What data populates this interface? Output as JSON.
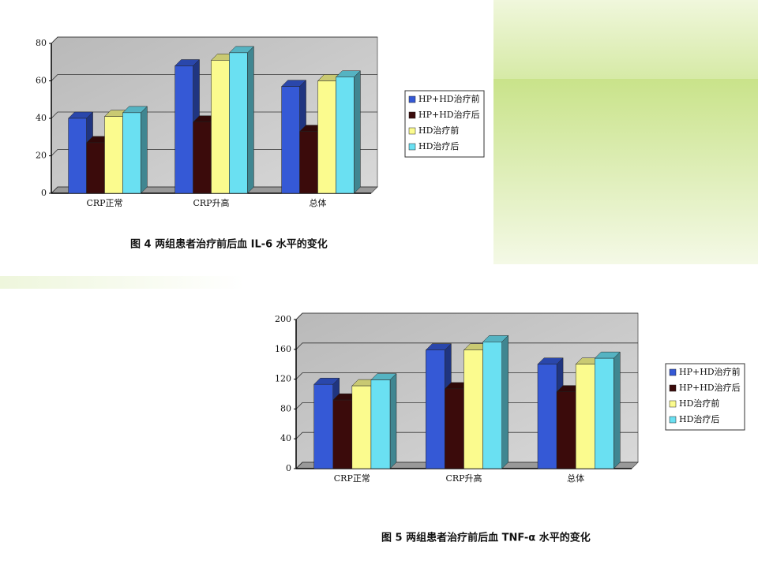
{
  "chart_data": [
    {
      "type": "bar",
      "title": "图 4 两组患者治疗前后血 IL-6 水平的变化",
      "categories": [
        "CRP正常",
        "CRP升高",
        "总体"
      ],
      "series": [
        {
          "name": "HP+HD治疗前",
          "color": "#3559d6",
          "values": [
            40,
            68,
            57
          ]
        },
        {
          "name": "HP+HD治疗后",
          "color": "#3b0b0b",
          "values": [
            27,
            38,
            33
          ]
        },
        {
          "name": "HD治疗前",
          "color": "#fbfb8e",
          "values": [
            41,
            71,
            60
          ]
        },
        {
          "name": "HD治疗后",
          "color": "#6ae0f2",
          "values": [
            43,
            75,
            62
          ]
        }
      ],
      "ylim": [
        0,
        80
      ],
      "yticks": [
        0,
        20,
        40,
        60,
        80
      ],
      "grid": true
    },
    {
      "type": "bar",
      "title": "图 5 两组患者治疗前后血 TNF-α 水平的变化",
      "categories": [
        "CRP正常",
        "CRP升高",
        "总体"
      ],
      "series": [
        {
          "name": "HP+HD治疗前",
          "color": "#3559d6",
          "values": [
            113,
            159,
            140
          ]
        },
        {
          "name": "HP+HD治疗后",
          "color": "#3b0b0b",
          "values": [
            92,
            107,
            103
          ]
        },
        {
          "name": "HD治疗前",
          "color": "#fbfb8e",
          "values": [
            111,
            159,
            140
          ]
        },
        {
          "name": "HD治疗后",
          "color": "#6ae0f2",
          "values": [
            119,
            170,
            148
          ]
        }
      ],
      "ylim": [
        0,
        200
      ],
      "yticks": [
        0,
        40,
        80,
        120,
        160,
        200
      ],
      "grid": true
    }
  ]
}
